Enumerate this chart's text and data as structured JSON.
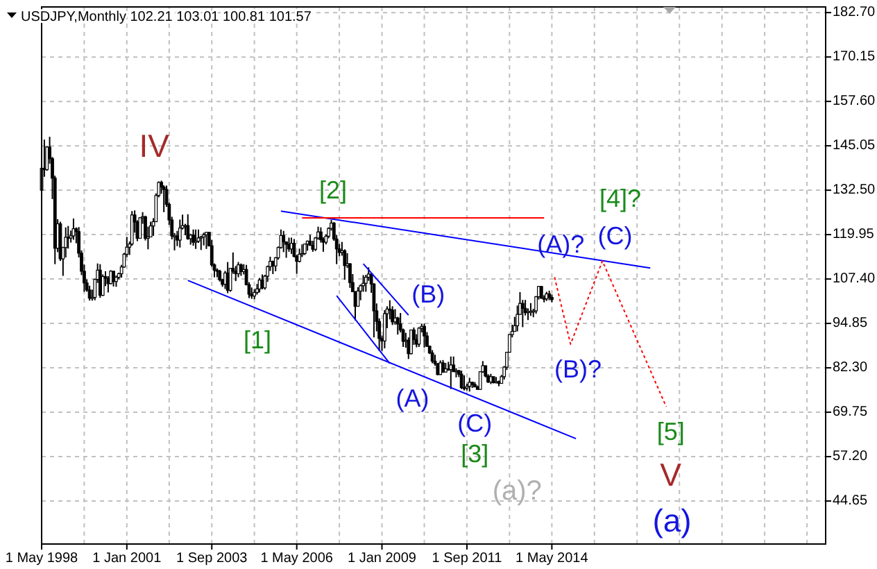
{
  "chart_data": {
    "type": "candlestick",
    "title": "USDJPY,Monthly  102.21 103.01 100.81 101.57",
    "color": "#000000",
    "grid": true,
    "xlim": [
      "1998-05-01",
      "2022-12-01"
    ],
    "xticks": [
      {
        "value": "1998-05-01",
        "label": "1 May 1998"
      },
      {
        "value": "1999-09-01",
        "label": null
      },
      {
        "value": "2001-01-01",
        "label": "1 Jan 2001"
      },
      {
        "value": "2002-05-01",
        "label": null
      },
      {
        "value": "2003-09-01",
        "label": "1 Sep 2003"
      },
      {
        "value": "2005-01-01",
        "label": null
      },
      {
        "value": "2006-05-01",
        "label": "1 May 2006"
      },
      {
        "value": "2007-09-01",
        "label": null
      },
      {
        "value": "2009-01-01",
        "label": "1 Jan 2009"
      },
      {
        "value": "2010-05-01",
        "label": null
      },
      {
        "value": "2011-09-01",
        "label": "1 Sep 2011"
      },
      {
        "value": "2013-01-01",
        "label": null
      },
      {
        "value": "2014-05-01",
        "label": "1 May 2014"
      },
      {
        "value": "2015-09-01",
        "label": null
      },
      {
        "value": "2017-01-01",
        "label": null
      },
      {
        "value": "2018-05-01",
        "label": null
      },
      {
        "value": "2019-09-01",
        "label": null
      },
      {
        "value": "2021-01-01",
        "label": null
      },
      {
        "value": "2022-05-01",
        "label": null
      }
    ],
    "ylim": [
      32.5,
      184.3
    ],
    "yticks": [
      {
        "value": 44.65,
        "label": "44.65"
      },
      {
        "value": 57.2,
        "label": "57.20"
      },
      {
        "value": 69.75,
        "label": "69.75"
      },
      {
        "value": 82.3,
        "label": "82.30"
      },
      {
        "value": 94.85,
        "label": "94.85"
      },
      {
        "value": 107.4,
        "label": "107.40"
      },
      {
        "value": 119.95,
        "label": "119.95"
      },
      {
        "value": 132.5,
        "label": "132.50"
      },
      {
        "value": 145.05,
        "label": "145.05"
      },
      {
        "value": 157.6,
        "label": "157.60"
      },
      {
        "value": 170.15,
        "label": "170.15"
      },
      {
        "value": 182.7,
        "label": "182.70"
      }
    ],
    "x": [
      "1998-05",
      "1998-06",
      "1998-07",
      "1998-08",
      "1998-09",
      "1998-10",
      "1998-11",
      "1998-12",
      "1999-01",
      "1999-02",
      "1999-03",
      "1999-04",
      "1999-05",
      "1999-06",
      "1999-07",
      "1999-08",
      "1999-09",
      "1999-10",
      "1999-11",
      "1999-12",
      "2000-01",
      "2000-02",
      "2000-03",
      "2000-04",
      "2000-05",
      "2000-06",
      "2000-07",
      "2000-08",
      "2000-09",
      "2000-10",
      "2000-11",
      "2000-12",
      "2001-01",
      "2001-02",
      "2001-03",
      "2001-04",
      "2001-05",
      "2001-06",
      "2001-07",
      "2001-08",
      "2001-09",
      "2001-10",
      "2001-11",
      "2001-12",
      "2002-01",
      "2002-02",
      "2002-03",
      "2002-04",
      "2002-05",
      "2002-06",
      "2002-07",
      "2002-08",
      "2002-09",
      "2002-10",
      "2002-11",
      "2002-12",
      "2003-01",
      "2003-02",
      "2003-03",
      "2003-04",
      "2003-05",
      "2003-06",
      "2003-07",
      "2003-08",
      "2003-09",
      "2003-10",
      "2003-11",
      "2003-12",
      "2004-01",
      "2004-02",
      "2004-03",
      "2004-04",
      "2004-05",
      "2004-06",
      "2004-07",
      "2004-08",
      "2004-09",
      "2004-10",
      "2004-11",
      "2004-12",
      "2005-01",
      "2005-02",
      "2005-03",
      "2005-04",
      "2005-05",
      "2005-06",
      "2005-07",
      "2005-08",
      "2005-09",
      "2005-10",
      "2005-11",
      "2005-12",
      "2006-01",
      "2006-02",
      "2006-03",
      "2006-04",
      "2006-05",
      "2006-06",
      "2006-07",
      "2006-08",
      "2006-09",
      "2006-10",
      "2006-11",
      "2006-12",
      "2007-01",
      "2007-02",
      "2007-03",
      "2007-04",
      "2007-05",
      "2007-06",
      "2007-07",
      "2007-08",
      "2007-09",
      "2007-10",
      "2007-11",
      "2007-12",
      "2008-01",
      "2008-02",
      "2008-03",
      "2008-04",
      "2008-05",
      "2008-06",
      "2008-07",
      "2008-08",
      "2008-09",
      "2008-10",
      "2008-11",
      "2008-12",
      "2009-01",
      "2009-02",
      "2009-03",
      "2009-04",
      "2009-05",
      "2009-06",
      "2009-07",
      "2009-08",
      "2009-09",
      "2009-10",
      "2009-11",
      "2009-12",
      "2010-01",
      "2010-02",
      "2010-03",
      "2010-04",
      "2010-05",
      "2010-06",
      "2010-07",
      "2010-08",
      "2010-09",
      "2010-10",
      "2010-11",
      "2010-12",
      "2011-01",
      "2011-02",
      "2011-03",
      "2011-04",
      "2011-05",
      "2011-06",
      "2011-07",
      "2011-08",
      "2011-09",
      "2011-10",
      "2011-11",
      "2011-12",
      "2012-01",
      "2012-02",
      "2012-03",
      "2012-04",
      "2012-05",
      "2012-06",
      "2012-07",
      "2012-08",
      "2012-09",
      "2012-10",
      "2012-11",
      "2012-12",
      "2013-01",
      "2013-02",
      "2013-03",
      "2013-04",
      "2013-05",
      "2013-06",
      "2013-07",
      "2013-08",
      "2013-09",
      "2013-10",
      "2013-11",
      "2013-12",
      "2014-01",
      "2014-02",
      "2014-03",
      "2014-04",
      "2014-05"
    ],
    "ohlc": [
      [
        132.5,
        139.5,
        131.5,
        138.7
      ],
      [
        138.7,
        146.8,
        136.3,
        138.3
      ],
      [
        138.3,
        145.0,
        138.0,
        144.7
      ],
      [
        144.7,
        147.6,
        140.0,
        141.4
      ],
      [
        141.4,
        141.9,
        130.0,
        135.9
      ],
      [
        135.9,
        136.6,
        111.6,
        116.1
      ],
      [
        116.1,
        124.3,
        115.0,
        123.0
      ],
      [
        123.0,
        123.6,
        112.5,
        113.1
      ],
      [
        113.1,
        116.5,
        108.3,
        116.3
      ],
      [
        116.3,
        122.0,
        113.5,
        119.2
      ],
      [
        119.2,
        122.4,
        116.0,
        119.0
      ],
      [
        119.0,
        121.1,
        117.7,
        119.6
      ],
      [
        119.6,
        124.5,
        118.5,
        121.6
      ],
      [
        121.6,
        122.0,
        117.5,
        120.8
      ],
      [
        120.8,
        122.1,
        113.5,
        114.7
      ],
      [
        114.7,
        115.5,
        108.5,
        109.6
      ],
      [
        109.6,
        111.5,
        103.8,
        106.3
      ],
      [
        106.3,
        107.3,
        103.8,
        104.3
      ],
      [
        104.3,
        105.5,
        101.3,
        102.0
      ],
      [
        102.0,
        104.4,
        101.3,
        102.2
      ],
      [
        102.2,
        107.5,
        101.4,
        107.3
      ],
      [
        107.3,
        111.8,
        106.3,
        109.9
      ],
      [
        109.9,
        111.6,
        102.1,
        102.8
      ],
      [
        102.8,
        108.7,
        102.6,
        108.1
      ],
      [
        108.1,
        109.6,
        105.4,
        107.6
      ],
      [
        107.6,
        108.2,
        103.6,
        106.1
      ],
      [
        106.1,
        109.9,
        105.9,
        109.6
      ],
      [
        109.6,
        109.7,
        105.3,
        106.7
      ],
      [
        106.7,
        108.4,
        105.2,
        107.9
      ],
      [
        107.9,
        109.2,
        107.3,
        108.9
      ],
      [
        108.9,
        111.4,
        107.8,
        110.8
      ],
      [
        110.8,
        114.8,
        110.6,
        114.4
      ],
      [
        114.4,
        119.3,
        113.6,
        116.4
      ],
      [
        116.4,
        118.0,
        114.2,
        117.3
      ],
      [
        117.3,
        126.6,
        116.8,
        125.5
      ],
      [
        125.5,
        126.8,
        120.5,
        123.5
      ],
      [
        123.5,
        124.0,
        118.1,
        118.9
      ],
      [
        118.9,
        124.9,
        118.8,
        124.7
      ],
      [
        124.7,
        126.3,
        123.0,
        125.0
      ],
      [
        125.0,
        125.3,
        118.3,
        118.9
      ],
      [
        118.9,
        122.2,
        115.8,
        119.3
      ],
      [
        119.3,
        123.6,
        119.3,
        122.4
      ],
      [
        122.4,
        124.6,
        119.6,
        123.6
      ],
      [
        123.6,
        131.6,
        123.5,
        131.0
      ],
      [
        131.0,
        135.0,
        130.5,
        134.7
      ],
      [
        134.7,
        135.2,
        131.5,
        133.4
      ],
      [
        133.4,
        133.9,
        126.3,
        132.7
      ],
      [
        132.7,
        133.8,
        127.8,
        128.5
      ],
      [
        128.5,
        129.0,
        122.7,
        124.1
      ],
      [
        124.1,
        125.0,
        118.6,
        119.6
      ],
      [
        119.6,
        120.4,
        115.5,
        119.6
      ],
      [
        119.6,
        121.0,
        116.7,
        118.4
      ],
      [
        118.4,
        124.2,
        116.3,
        121.8
      ],
      [
        121.8,
        125.6,
        121.4,
        122.5
      ],
      [
        122.5,
        123.0,
        119.8,
        122.5
      ],
      [
        122.5,
        125.7,
        118.5,
        118.8
      ],
      [
        118.8,
        120.2,
        117.1,
        119.8
      ],
      [
        119.8,
        121.4,
        116.8,
        117.8
      ],
      [
        117.8,
        121.4,
        115.9,
        118.1
      ],
      [
        118.1,
        121.4,
        117.6,
        119.0
      ],
      [
        119.0,
        119.6,
        115.6,
        119.3
      ],
      [
        119.3,
        120.5,
        116.9,
        119.9
      ],
      [
        119.9,
        120.6,
        115.9,
        120.6
      ],
      [
        120.6,
        120.6,
        116.6,
        116.8
      ],
      [
        116.8,
        118.5,
        110.9,
        111.4
      ],
      [
        111.4,
        111.8,
        107.9,
        109.9
      ],
      [
        109.9,
        110.4,
        107.9,
        109.6
      ],
      [
        109.6,
        110.0,
        106.7,
        107.2
      ],
      [
        107.2,
        107.5,
        105.2,
        105.9
      ],
      [
        105.9,
        109.7,
        104.6,
        109.1
      ],
      [
        109.1,
        112.2,
        103.4,
        104.2
      ],
      [
        104.2,
        110.5,
        103.8,
        110.4
      ],
      [
        110.4,
        114.9,
        108.9,
        109.6
      ],
      [
        109.6,
        111.1,
        106.8,
        108.9
      ],
      [
        108.9,
        112.2,
        107.9,
        111.4
      ],
      [
        111.4,
        111.8,
        108.3,
        109.5
      ],
      [
        109.5,
        111.6,
        108.7,
        110.1
      ],
      [
        110.1,
        111.4,
        105.6,
        105.8
      ],
      [
        105.8,
        106.5,
        102.0,
        103.1
      ],
      [
        103.1,
        105.0,
        101.8,
        102.6
      ],
      [
        102.6,
        104.6,
        101.7,
        103.6
      ],
      [
        103.6,
        106.0,
        103.0,
        104.6
      ],
      [
        104.6,
        107.7,
        103.6,
        107.1
      ],
      [
        107.1,
        108.7,
        104.5,
        104.9
      ],
      [
        104.9,
        108.6,
        104.4,
        108.2
      ],
      [
        108.2,
        111.2,
        106.6,
        110.9
      ],
      [
        110.9,
        113.7,
        109.7,
        112.4
      ],
      [
        112.4,
        112.6,
        108.8,
        111.1
      ],
      [
        111.1,
        113.6,
        109.6,
        113.4
      ],
      [
        113.4,
        116.6,
        112.9,
        116.3
      ],
      [
        116.3,
        121.4,
        116.0,
        119.7
      ],
      [
        119.7,
        121.0,
        115.0,
        117.9
      ],
      [
        117.9,
        118.0,
        113.4,
        117.2
      ],
      [
        117.2,
        119.1,
        115.1,
        115.9
      ],
      [
        115.9,
        119.1,
        114.5,
        117.5
      ],
      [
        117.5,
        118.7,
        113.5,
        113.8
      ],
      [
        113.8,
        114.3,
        108.9,
        112.4
      ],
      [
        112.4,
        116.0,
        112.1,
        114.4
      ],
      [
        114.4,
        117.2,
        113.6,
        114.6
      ],
      [
        114.6,
        117.4,
        114.2,
        117.3
      ],
      [
        117.3,
        118.3,
        115.4,
        118.1
      ],
      [
        118.1,
        119.9,
        116.9,
        116.9
      ],
      [
        116.9,
        118.2,
        115.1,
        115.8
      ],
      [
        115.8,
        119.3,
        115.3,
        119.0
      ],
      [
        119.0,
        122.2,
        118.5,
        120.7
      ],
      [
        120.7,
        122.0,
        117.7,
        118.5
      ],
      [
        118.5,
        119.2,
        115.1,
        117.8
      ],
      [
        117.8,
        120.0,
        117.2,
        119.5
      ],
      [
        119.5,
        122.0,
        118.9,
        121.7
      ],
      [
        121.7,
        124.1,
        121.1,
        123.2
      ],
      [
        123.2,
        123.5,
        118.2,
        118.7
      ],
      [
        118.7,
        119.8,
        111.6,
        115.9
      ],
      [
        115.9,
        117.3,
        113.8,
        114.9
      ],
      [
        114.9,
        117.9,
        114.0,
        115.4
      ],
      [
        115.4,
        115.8,
        107.2,
        111.2
      ],
      [
        111.2,
        114.7,
        110.5,
        111.7
      ],
      [
        111.7,
        111.9,
        104.9,
        106.4
      ],
      [
        106.4,
        108.8,
        103.8,
        103.8
      ],
      [
        103.8,
        104.0,
        95.7,
        99.7
      ],
      [
        99.7,
        105.1,
        99.6,
        104.0
      ],
      [
        104.0,
        105.9,
        101.4,
        105.5
      ],
      [
        105.5,
        108.5,
        103.8,
        106.2
      ],
      [
        106.2,
        108.6,
        103.8,
        107.9
      ],
      [
        107.9,
        110.7,
        106.9,
        108.8
      ],
      [
        108.8,
        108.9,
        103.5,
        106.0
      ],
      [
        106.0,
        106.2,
        90.9,
        98.4
      ],
      [
        98.4,
        100.5,
        92.6,
        95.4
      ],
      [
        95.4,
        96.3,
        87.1,
        90.6
      ],
      [
        90.6,
        91.4,
        87.1,
        89.9
      ],
      [
        89.9,
        98.6,
        87.8,
        97.6
      ],
      [
        97.6,
        99.7,
        93.5,
        98.9
      ],
      [
        98.9,
        101.4,
        96.0,
        98.6
      ],
      [
        98.6,
        99.7,
        94.4,
        95.3
      ],
      [
        95.3,
        98.9,
        94.5,
        96.4
      ],
      [
        96.4,
        96.7,
        91.7,
        94.7
      ],
      [
        94.7,
        97.8,
        92.3,
        93.0
      ],
      [
        93.0,
        93.4,
        88.2,
        89.8
      ],
      [
        89.8,
        92.2,
        88.0,
        90.1
      ],
      [
        90.1,
        90.9,
        84.8,
        86.3
      ],
      [
        86.3,
        93.1,
        86.1,
        93.0
      ],
      [
        93.0,
        93.7,
        88.8,
        90.3
      ],
      [
        90.3,
        91.8,
        88.1,
        89.0
      ],
      [
        89.0,
        93.8,
        88.2,
        93.5
      ],
      [
        93.5,
        94.8,
        92.3,
        94.0
      ],
      [
        94.0,
        94.8,
        88.0,
        91.3
      ],
      [
        91.3,
        92.4,
        88.2,
        88.4
      ],
      [
        88.4,
        88.6,
        86.2,
        86.5
      ],
      [
        86.5,
        87.3,
        83.6,
        84.2
      ],
      [
        84.2,
        86.0,
        82.9,
        83.5
      ],
      [
        83.5,
        83.6,
        80.2,
        80.4
      ],
      [
        80.4,
        84.4,
        80.3,
        83.7
      ],
      [
        83.7,
        84.5,
        80.9,
        81.1
      ],
      [
        81.1,
        83.7,
        81.0,
        82.0
      ],
      [
        82.0,
        84.0,
        81.5,
        81.8
      ],
      [
        81.8,
        85.5,
        76.3,
        83.1
      ],
      [
        83.1,
        85.5,
        81.2,
        81.2
      ],
      [
        81.2,
        82.2,
        79.6,
        81.5
      ],
      [
        81.5,
        81.7,
        79.7,
        80.5
      ],
      [
        80.5,
        81.5,
        76.3,
        76.7
      ],
      [
        76.7,
        80.2,
        75.9,
        76.6
      ],
      [
        76.6,
        77.8,
        75.9,
        77.1
      ],
      [
        77.1,
        79.5,
        75.6,
        78.2
      ],
      [
        78.2,
        78.4,
        76.6,
        77.6
      ],
      [
        77.6,
        78.3,
        76.9,
        76.9
      ],
      [
        76.9,
        77.3,
        76.1,
        76.2
      ],
      [
        76.2,
        81.3,
        76.1,
        81.2
      ],
      [
        81.2,
        84.2,
        80.9,
        82.9
      ],
      [
        82.9,
        82.9,
        79.6,
        80.0
      ],
      [
        80.0,
        80.5,
        78.0,
        78.3
      ],
      [
        78.3,
        80.6,
        77.7,
        79.8
      ],
      [
        79.8,
        79.9,
        77.9,
        78.1
      ],
      [
        78.1,
        79.7,
        77.9,
        78.4
      ],
      [
        78.4,
        78.7,
        77.1,
        77.9
      ],
      [
        77.9,
        80.3,
        77.8,
        79.8
      ],
      [
        79.8,
        82.8,
        79.0,
        82.5
      ],
      [
        82.5,
        86.8,
        81.7,
        86.7
      ],
      [
        86.7,
        91.8,
        86.6,
        91.7
      ],
      [
        91.7,
        94.5,
        90.9,
        92.6
      ],
      [
        92.6,
        96.7,
        92.6,
        94.2
      ],
      [
        94.2,
        99.9,
        92.6,
        97.4
      ],
      [
        97.4,
        103.7,
        97.3,
        100.5
      ],
      [
        100.5,
        101.5,
        93.8,
        99.1
      ],
      [
        99.1,
        101.5,
        97.1,
        97.9
      ],
      [
        97.9,
        99.1,
        95.8,
        98.2
      ],
      [
        98.2,
        100.6,
        97.0,
        98.3
      ],
      [
        98.3,
        99.0,
        96.6,
        98.4
      ],
      [
        98.4,
        102.6,
        97.6,
        102.4
      ],
      [
        102.4,
        105.4,
        101.6,
        105.3
      ],
      [
        105.3,
        105.4,
        101.8,
        102.0
      ],
      [
        102.0,
        102.8,
        100.8,
        101.8
      ],
      [
        101.8,
        103.8,
        101.2,
        103.2
      ],
      [
        103.2,
        104.1,
        101.4,
        102.2
      ],
      [
        102.21,
        103.01,
        100.81,
        101.57
      ]
    ],
    "series": [
      {
        "type": "line",
        "color": "#0000ff",
        "line_style": "solid",
        "x": [
          "2002-12-01",
          "2015-02-01"
        ],
        "values": [
          107.0,
          62.3
        ]
      },
      {
        "type": "line",
        "color": "#0000ff",
        "line_style": "solid",
        "x": [
          "2005-11-01",
          "2017-06-01"
        ],
        "values": [
          126.6,
          110.5
        ]
      },
      {
        "type": "line",
        "color": "#ff0000",
        "line_style": "solid",
        "x": [
          "2006-07-01",
          "2014-02-01"
        ],
        "values": [
          124.7,
          124.7
        ]
      },
      {
        "type": "line",
        "color": "#0000ff",
        "line_style": "solid",
        "x": [
          "2007-08-01",
          "2009-04-01"
        ],
        "values": [
          102.7,
          83.5
        ]
      },
      {
        "type": "line",
        "color": "#0000ff",
        "line_style": "solid",
        "x": [
          "2008-06-01",
          "2009-11-01"
        ],
        "values": [
          111.7,
          97.2
        ]
      },
      {
        "type": "line",
        "color": "#ff0000",
        "line_style": "dotted",
        "x": [
          "2014-06-01",
          "2014-12-01",
          "2015-12-01",
          "2017-12-01"
        ],
        "values": [
          107.9,
          89.0,
          112.5,
          71.3
        ]
      }
    ],
    "annotations": [
      "IV",
      "[1]",
      "[2]",
      "(B)",
      "(A)",
      "(C)",
      "[3]",
      "(a)?",
      "(A)?",
      "(B)?",
      "(C)",
      "[4]?",
      "[5]",
      "V",
      "(a)"
    ]
  }
}
